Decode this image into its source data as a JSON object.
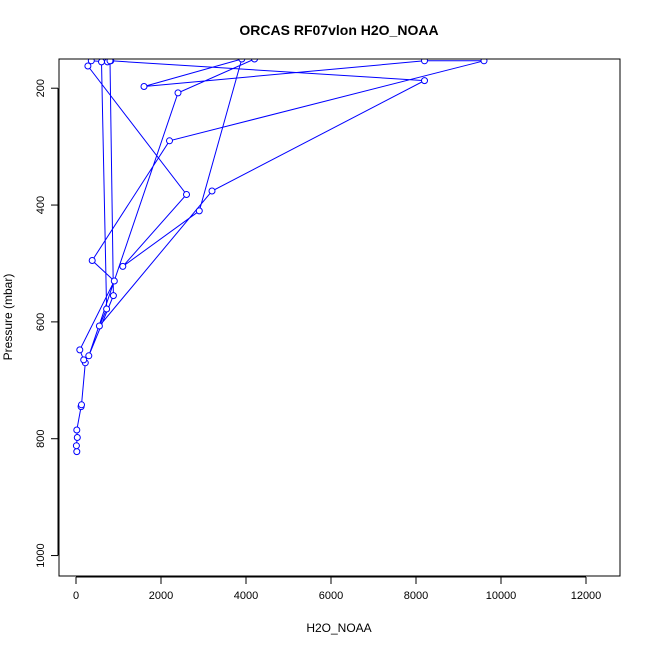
{
  "chart_data": {
    "type": "scatter",
    "title": "ORCAS RF07vlon H2O_NOAA",
    "xlabel": "H2O_NOAA",
    "ylabel": "Pressure (mbar)",
    "xlim": [
      -400,
      12800
    ],
    "ylim": [
      1035,
      150
    ],
    "y_reversed": true,
    "xticks": [
      0,
      2000,
      4000,
      6000,
      8000,
      10000,
      12000
    ],
    "yticks": [
      200,
      400,
      600,
      800,
      1000
    ],
    "line_color": "#0000ff",
    "marker": "open-circle",
    "series": [
      {
        "points": [
          [
            20,
            822
          ],
          [
            10,
            812
          ],
          [
            30,
            798
          ],
          [
            20,
            785
          ],
          [
            120,
            745
          ],
          [
            130,
            742
          ],
          [
            220,
            670
          ],
          [
            180,
            665
          ],
          [
            90,
            648
          ],
          [
            900,
            530
          ],
          [
            380,
            495
          ],
          [
            2200,
            290
          ],
          [
            9600,
            153
          ],
          [
            8200,
            153
          ],
          [
            1600,
            197
          ],
          [
            3900,
            150
          ],
          [
            2900,
            410
          ],
          [
            1100,
            505
          ],
          [
            2600,
            382
          ],
          [
            280,
            162
          ],
          [
            360,
            153
          ],
          [
            740,
            155
          ],
          [
            820,
            153
          ],
          [
            8200,
            187
          ],
          [
            3200,
            376
          ],
          [
            550,
            607
          ],
          [
            720,
            578
          ],
          [
            600,
            155
          ],
          [
            800,
            153
          ],
          [
            880,
            555
          ],
          [
            300,
            658
          ],
          [
            2400,
            208
          ],
          [
            4200,
            150
          ]
        ]
      }
    ]
  }
}
